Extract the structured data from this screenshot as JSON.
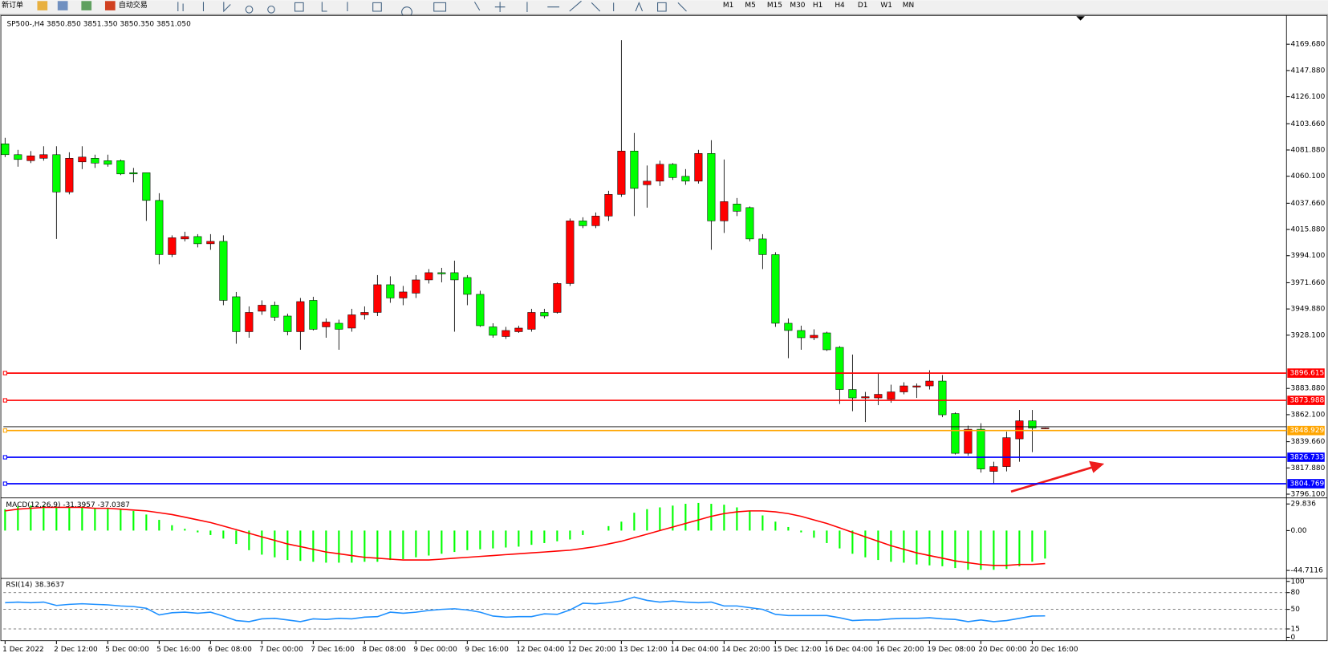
{
  "toolbar": {
    "buttons": [
      "新订单",
      "自动交易"
    ],
    "timeframes": [
      "M1",
      "M5",
      "M15",
      "M30",
      "H1",
      "H4",
      "D1",
      "W1",
      "MN"
    ]
  },
  "chart_data": [
    {
      "type": "candlestick",
      "title": "SP500-,H4  3850.850 3851.350 3850.350 3851.050",
      "categories": [
        "1 Dec 2022",
        null,
        null,
        null,
        "2 Dec 12:00",
        null,
        null,
        null,
        "5 Dec 00:00",
        null,
        null,
        null,
        "5 Dec 16:00",
        null,
        null,
        null,
        "6 Dec 08:00",
        null,
        null,
        null,
        "7 Dec 00:00",
        null,
        null,
        null,
        "7 Dec 16:00",
        null,
        null,
        null,
        "8 Dec 08:00",
        null,
        null,
        null,
        "9 Dec 00:00",
        null,
        null,
        null,
        "9 Dec 16:00",
        null,
        null,
        null,
        "12 Dec 04:00",
        null,
        null,
        null,
        "12 Dec 20:00",
        null,
        null,
        null,
        "13 Dec 12:00",
        null,
        null,
        null,
        "14 Dec 04:00",
        null,
        null,
        null,
        "14 Dec 20:00",
        null,
        null,
        null,
        "15 Dec 12:00",
        null,
        null,
        null,
        "16 Dec 04:00",
        null,
        null,
        null,
        "16 Dec 20:00",
        null,
        null,
        null,
        "19 Dec 08:00",
        null,
        null,
        null,
        "20 Dec 00:00",
        null,
        null,
        null,
        "20 Dec 16:00",
        null
      ],
      "open": [
        4087,
        4078,
        4073,
        4075,
        4078,
        4047,
        4072,
        4075,
        4073,
        4073,
        4063,
        4063,
        4040,
        3995,
        4008,
        4010,
        4004,
        4006,
        3960,
        3931,
        3948,
        3953,
        3944,
        3931,
        3957,
        3935,
        3938,
        3934,
        3945,
        3947,
        3970,
        3959,
        3963,
        3974,
        3980,
        3980,
        3976,
        3962,
        3935,
        3927,
        3931,
        3933,
        3947,
        3947,
        3971,
        4023,
        4019,
        4027,
        4045,
        4081,
        4053,
        4056,
        4070,
        4060,
        4056,
        4079,
        4023,
        4037,
        4034,
        4008,
        3995,
        3938,
        3932,
        3926,
        3930,
        3918,
        3883,
        3876,
        3876,
        3875,
        3881,
        3885,
        3886,
        3890,
        3863,
        3830,
        3850,
        3815,
        3819,
        3842,
        3857,
        3850.85
      ],
      "high": [
        4092,
        4082,
        4081,
        4085,
        4085,
        4080,
        4085,
        4078,
        4078,
        4074,
        4067,
        4063,
        4046,
        4011,
        4014,
        4012,
        4012,
        4011,
        3964,
        3952,
        3957,
        3956,
        3946,
        3959,
        3960,
        3942,
        3941,
        3950,
        3952,
        3978,
        3977,
        3969,
        3978,
        3983,
        3984,
        3990,
        3978,
        3965,
        3938,
        3935,
        3936,
        3950,
        3950,
        3972,
        4025,
        4026,
        4030,
        4048,
        4173,
        4096,
        4069,
        4073,
        4071,
        4066,
        4082,
        4090,
        4074,
        4042,
        4035,
        4012,
        3997,
        3942,
        3936,
        3933,
        3931,
        3919,
        3912,
        3881,
        3896,
        3887,
        3889,
        3888,
        3899,
        3895,
        3864,
        3853,
        3855,
        3823,
        3848,
        3866,
        3866,
        3851.35
      ],
      "low": [
        4076,
        4068,
        4071,
        4073,
        4008,
        4045,
        4066,
        4067,
        4068,
        4061,
        4055,
        4023,
        3987,
        3993,
        4006,
        4001,
        3999,
        3953,
        3921,
        3926,
        3945,
        3940,
        3928,
        3916,
        3932,
        3926,
        3916,
        3931,
        3941,
        3944,
        3955,
        3953,
        3959,
        3971,
        3972,
        3931,
        3953,
        3935,
        3926,
        3925,
        3930,
        3931,
        3942,
        3946,
        3969,
        4017,
        4017,
        4023,
        4043,
        4027,
        4034,
        4052,
        4057,
        4053,
        4054,
        3999,
        4013,
        4027,
        4006,
        3983,
        3935,
        3909,
        3916,
        3924,
        3915,
        3871,
        3865,
        3856,
        3870,
        3872,
        3879,
        3876,
        3883,
        3860,
        3829,
        3828,
        3814,
        3805,
        3815,
        3823,
        3831,
        3850.35
      ],
      "close": [
        4078,
        4074,
        4077,
        4078,
        4047,
        4075,
        4076,
        4071,
        4070,
        4062,
        4062,
        4040,
        3995,
        4009,
        4010,
        4004,
        4006,
        3957,
        3931,
        3947,
        3953,
        3943,
        3931,
        3956,
        3933,
        3939,
        3933,
        3945,
        3947,
        3970,
        3959,
        3964,
        3974,
        3980,
        3979,
        3974,
        3962,
        3936,
        3928,
        3932,
        3934,
        3947,
        3944,
        3971,
        4023,
        4019,
        4027,
        4045,
        4081,
        4050,
        4056,
        4070,
        4059,
        4056,
        4079,
        4023,
        4039,
        4031,
        4008,
        3995,
        3938,
        3932,
        3926,
        3928,
        3916,
        3883,
        3876,
        3877,
        3879,
        3881,
        3886,
        3886,
        3890,
        3862,
        3830,
        3850,
        3817,
        3819,
        3843,
        3857,
        3851,
        3851.05
      ],
      "up_color": "#ff0000",
      "down_color": "#00ff00",
      "ylim": [
        3793.3,
        4193.6
      ],
      "yticks": [
        {
          "value": 4169.68,
          "label": "4169.680"
        },
        {
          "value": 4147.88,
          "label": "4147.880"
        },
        {
          "value": 4126.1,
          "label": "4126.100"
        },
        {
          "value": 4103.66,
          "label": "4103.660"
        },
        {
          "value": 4081.88,
          "label": "4081.880"
        },
        {
          "value": 4060.1,
          "label": "4060.100"
        },
        {
          "value": 4037.66,
          "label": "4037.660"
        },
        {
          "value": 4015.88,
          "label": "4015.880"
        },
        {
          "value": 3994.1,
          "label": "3994.100"
        },
        {
          "value": 3971.66,
          "label": "3971.660"
        },
        {
          "value": 3949.88,
          "label": "3949.880"
        },
        {
          "value": 3928.1,
          "label": "3928.100"
        },
        {
          "value": 3883.88,
          "label": "3883.880"
        },
        {
          "value": 3862.1,
          "label": "3862.100"
        },
        {
          "value": 3839.66,
          "label": "3839.660"
        },
        {
          "value": 3817.88,
          "label": "3817.880"
        },
        {
          "value": 3796.1,
          "label": "3796.100"
        }
      ],
      "hlines": [
        {
          "value": 3896.615,
          "color": "#ff0000"
        },
        {
          "value": 3873.988,
          "color": "#ff0000"
        },
        {
          "value": 3848.929,
          "color": "#ffa500"
        },
        {
          "value": 3826.733,
          "color": "#0000ff"
        },
        {
          "value": 3804.769,
          "color": "#0000ff"
        }
      ]
    },
    {
      "type": "combo",
      "title": "MACD(12,26,9) -31.3957 -37.0387",
      "series": [
        {
          "type": "bar",
          "color": "#00ff00",
          "values": [
            24,
            27,
            28,
            28,
            27,
            26,
            26,
            25,
            25,
            24,
            22,
            18,
            12,
            6,
            2,
            -2,
            -5,
            -9,
            -15,
            -22,
            -27,
            -30,
            -33,
            -34,
            -35,
            -36,
            -36,
            -36,
            -35,
            -35,
            -33,
            -32,
            -30,
            -28,
            -26,
            -24,
            -22,
            -21,
            -20,
            -19,
            -18,
            -16,
            -14,
            -12,
            -10,
            -5,
            0,
            5,
            10,
            20,
            24,
            26,
            28,
            30,
            31,
            30,
            29,
            26,
            22,
            17,
            10,
            4,
            -2,
            -8,
            -14,
            -20,
            -26,
            -30,
            -33,
            -35,
            -36,
            -38,
            -39,
            -40,
            -42,
            -44,
            -44,
            -44,
            -43,
            -40,
            -35,
            -31.3957
          ]
        },
        {
          "type": "line",
          "color": "#ff0000",
          "values": [
            22,
            24,
            25,
            26,
            26,
            26,
            26,
            25,
            25,
            24,
            23,
            22,
            20,
            18,
            15,
            12,
            9,
            5,
            1,
            -3,
            -7,
            -11,
            -15,
            -18,
            -21,
            -24,
            -26,
            -28,
            -30,
            -31,
            -32,
            -33,
            -33,
            -33,
            -32,
            -31,
            -30,
            -29,
            -28,
            -27,
            -26,
            -25,
            -24,
            -23,
            -22,
            -20,
            -18,
            -15,
            -12,
            -8,
            -4,
            0,
            4,
            8,
            12,
            16,
            19,
            21,
            22,
            22,
            21,
            19,
            16,
            12,
            8,
            3,
            -2,
            -7,
            -12,
            -17,
            -21,
            -25,
            -28,
            -31,
            -34,
            -36,
            -38,
            -39,
            -39,
            -38,
            -38,
            -37.0387
          ]
        }
      ],
      "ylim": [
        -53.2,
        36.1
      ],
      "yticks": [
        29.836,
        {
          "value": 0,
          "label": "0.00"
        },
        -44.7116
      ]
    },
    {
      "type": "line",
      "title": "RSI(14) 38.3637",
      "series": [
        {
          "color": "#1e90ff",
          "values": [
            62,
            63,
            62,
            63,
            57,
            59,
            60,
            59,
            58,
            56,
            55,
            52,
            40,
            44,
            45,
            43,
            45,
            38,
            30,
            28,
            33,
            34,
            31,
            28,
            33,
            32,
            34,
            33,
            36,
            37,
            45,
            43,
            45,
            48,
            50,
            51,
            49,
            45,
            38,
            36,
            37,
            37,
            42,
            41,
            49,
            61,
            60,
            62,
            65,
            72,
            66,
            63,
            65,
            63,
            62,
            63,
            56,
            56,
            53,
            50,
            41,
            39,
            39,
            39,
            39,
            35,
            30,
            31,
            31,
            33,
            34,
            34,
            35,
            33,
            32,
            28,
            31,
            28,
            30,
            34,
            38,
            38.3637
          ]
        }
      ],
      "ylim": [
        0,
        100
      ],
      "yticks": [
        100,
        80,
        50,
        15,
        0
      ]
    }
  ]
}
